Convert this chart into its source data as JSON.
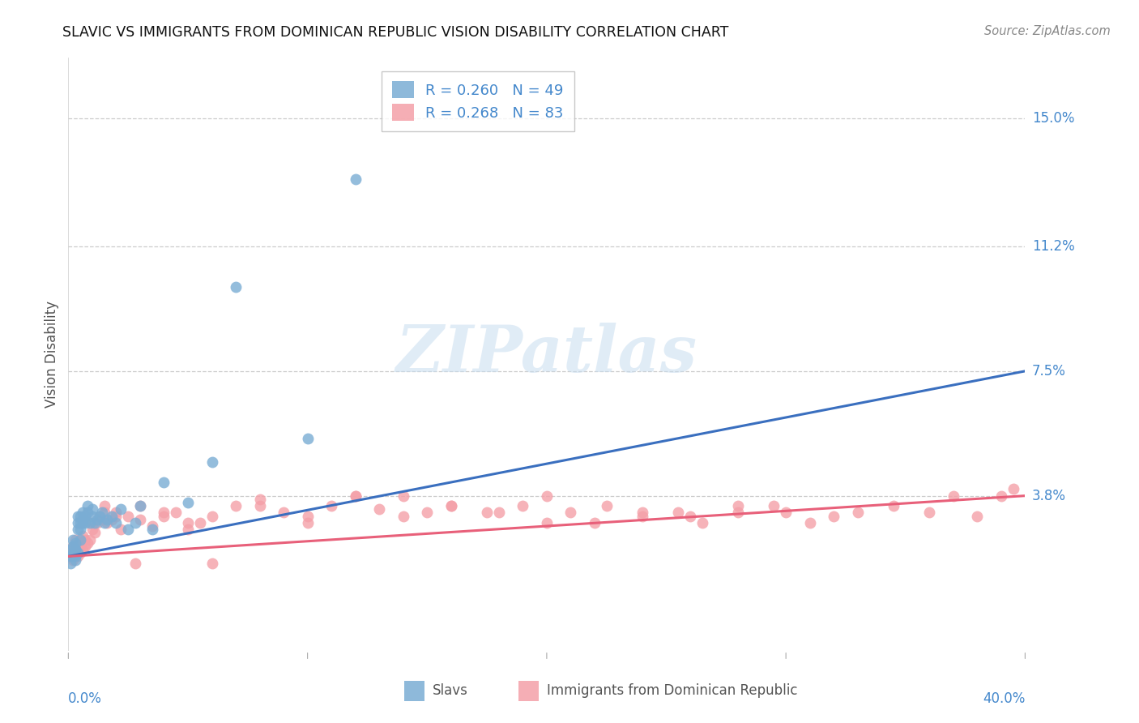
{
  "title": "SLAVIC VS IMMIGRANTS FROM DOMINICAN REPUBLIC VISION DISABILITY CORRELATION CHART",
  "source": "Source: ZipAtlas.com",
  "ylabel": "Vision Disability",
  "y_tick_labels": [
    "15.0%",
    "11.2%",
    "7.5%",
    "3.8%"
  ],
  "y_tick_values": [
    0.15,
    0.112,
    0.075,
    0.038
  ],
  "x_min": 0.0,
  "x_max": 0.4,
  "y_min": -0.008,
  "y_max": 0.168,
  "blue_color": "#7aadd4",
  "pink_color": "#f4a0a8",
  "trend_blue": "#3a6fbf",
  "trend_pink": "#e8607a",
  "slavs_x": [
    0.001,
    0.001,
    0.001,
    0.002,
    0.002,
    0.002,
    0.002,
    0.003,
    0.003,
    0.003,
    0.003,
    0.003,
    0.004,
    0.004,
    0.004,
    0.004,
    0.005,
    0.005,
    0.005,
    0.005,
    0.006,
    0.006,
    0.006,
    0.007,
    0.007,
    0.008,
    0.008,
    0.009,
    0.01,
    0.01,
    0.011,
    0.012,
    0.013,
    0.014,
    0.015,
    0.016,
    0.018,
    0.02,
    0.022,
    0.025,
    0.028,
    0.03,
    0.035,
    0.04,
    0.05,
    0.06,
    0.07,
    0.1,
    0.12
  ],
  "slavs_y": [
    0.02,
    0.022,
    0.018,
    0.021,
    0.023,
    0.02,
    0.025,
    0.019,
    0.022,
    0.024,
    0.02,
    0.022,
    0.03,
    0.028,
    0.032,
    0.021,
    0.03,
    0.028,
    0.025,
    0.032,
    0.03,
    0.033,
    0.031,
    0.032,
    0.03,
    0.033,
    0.035,
    0.03,
    0.034,
    0.032,
    0.03,
    0.031,
    0.032,
    0.033,
    0.03,
    0.031,
    0.032,
    0.03,
    0.034,
    0.028,
    0.03,
    0.035,
    0.028,
    0.042,
    0.036,
    0.048,
    0.1,
    0.055,
    0.132
  ],
  "dr_x": [
    0.001,
    0.001,
    0.002,
    0.002,
    0.003,
    0.003,
    0.004,
    0.004,
    0.005,
    0.005,
    0.006,
    0.006,
    0.007,
    0.007,
    0.008,
    0.009,
    0.01,
    0.011,
    0.012,
    0.013,
    0.014,
    0.015,
    0.016,
    0.018,
    0.02,
    0.022,
    0.025,
    0.028,
    0.03,
    0.035,
    0.04,
    0.045,
    0.05,
    0.055,
    0.06,
    0.07,
    0.08,
    0.09,
    0.1,
    0.11,
    0.12,
    0.13,
    0.14,
    0.15,
    0.16,
    0.175,
    0.19,
    0.2,
    0.21,
    0.225,
    0.24,
    0.255,
    0.265,
    0.28,
    0.295,
    0.31,
    0.32,
    0.33,
    0.345,
    0.36,
    0.37,
    0.38,
    0.39,
    0.395,
    0.01,
    0.015,
    0.02,
    0.03,
    0.04,
    0.05,
    0.06,
    0.08,
    0.1,
    0.12,
    0.14,
    0.16,
    0.18,
    0.2,
    0.22,
    0.24,
    0.26,
    0.28,
    0.3
  ],
  "dr_y": [
    0.02,
    0.022,
    0.019,
    0.023,
    0.021,
    0.025,
    0.02,
    0.024,
    0.021,
    0.023,
    0.022,
    0.026,
    0.023,
    0.025,
    0.024,
    0.025,
    0.028,
    0.027,
    0.03,
    0.032,
    0.031,
    0.033,
    0.03,
    0.031,
    0.033,
    0.028,
    0.032,
    0.018,
    0.031,
    0.029,
    0.032,
    0.033,
    0.028,
    0.03,
    0.018,
    0.035,
    0.037,
    0.033,
    0.032,
    0.035,
    0.038,
    0.034,
    0.038,
    0.033,
    0.035,
    0.033,
    0.035,
    0.03,
    0.033,
    0.035,
    0.032,
    0.033,
    0.03,
    0.033,
    0.035,
    0.03,
    0.032,
    0.033,
    0.035,
    0.033,
    0.038,
    0.032,
    0.038,
    0.04,
    0.03,
    0.035,
    0.032,
    0.035,
    0.033,
    0.03,
    0.032,
    0.035,
    0.03,
    0.038,
    0.032,
    0.035,
    0.033,
    0.038,
    0.03,
    0.033,
    0.032,
    0.035,
    0.033
  ],
  "slavs_trend_x": [
    0.0,
    0.4
  ],
  "slavs_trend_y": [
    0.02,
    0.075
  ],
  "dr_trend_x": [
    0.0,
    0.4
  ],
  "dr_trend_y": [
    0.02,
    0.038
  ]
}
